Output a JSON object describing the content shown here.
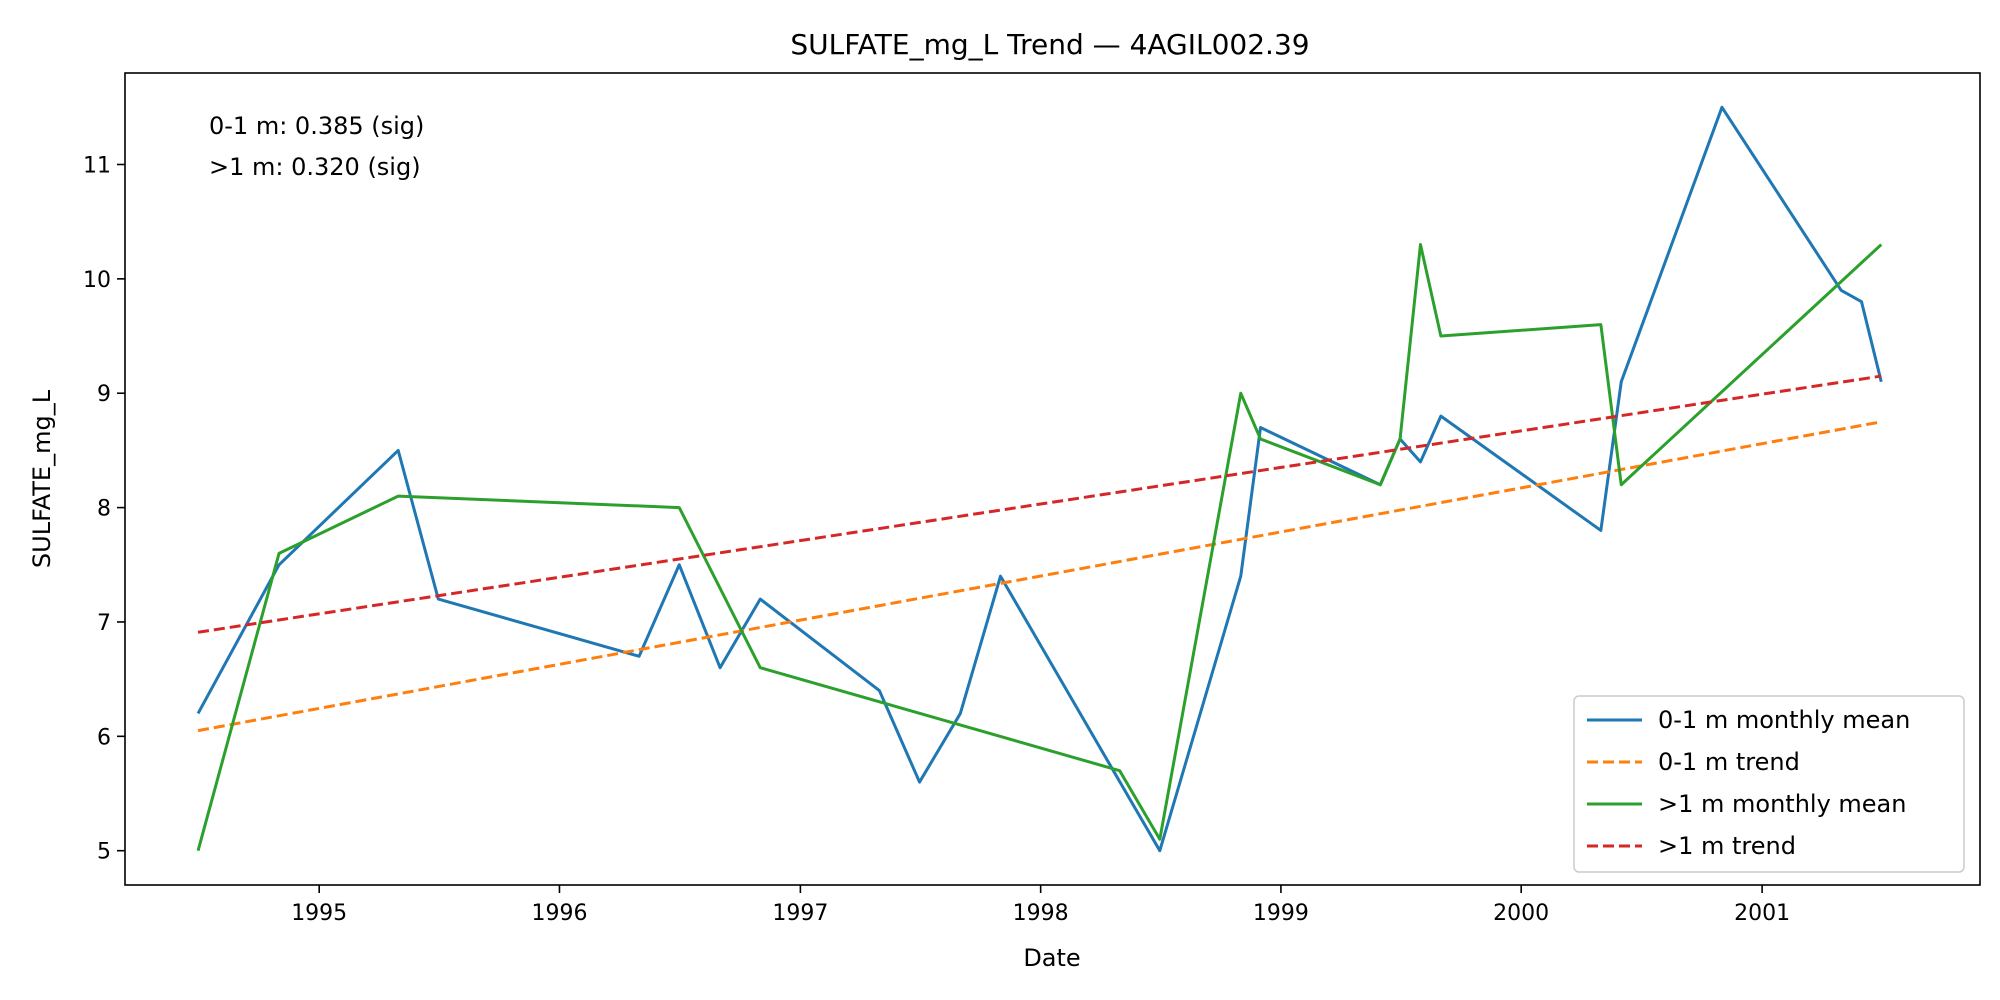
{
  "chart_data": {
    "type": "line",
    "title": "SULFATE_mg_L Trend — 4AGIL002.39",
    "xlabel": "Date",
    "ylabel": "SULFATE_mg_L",
    "xlim": [
      "1994-03-12",
      "2001-11-28"
    ],
    "ylim": [
      4.7,
      11.8
    ],
    "x_ticks": [
      "1995",
      "1996",
      "1997",
      "1998",
      "1999",
      "2000",
      "2001"
    ],
    "y_ticks": [
      5,
      6,
      7,
      8,
      9,
      10,
      11
    ],
    "grid": false,
    "legend_position": "lower-right",
    "annotations": [
      "0-1 m: 0.385 (sig)",
      ">1 m: 0.320 (sig)"
    ],
    "colors": {
      "series_0": "#1f77b4",
      "series_1": "#ff7f0e",
      "series_2": "#2ca02c",
      "series_3": "#d62728"
    },
    "series": [
      {
        "name": "0-1 m monthly mean",
        "style": "solid",
        "x": [
          "1994-07-01",
          "1994-11-01",
          "1995-05-01",
          "1995-07-01",
          "1996-05-01",
          "1996-07-01",
          "1996-09-01",
          "1996-11-01",
          "1997-05-01",
          "1997-07-01",
          "1997-09-01",
          "1997-11-01",
          "1998-07-01",
          "1998-11-01",
          "1998-12-01",
          "1999-06-01",
          "1999-07-01",
          "1999-08-01",
          "1999-09-01",
          "2000-05-01",
          "2000-06-01",
          "2000-11-01",
          "2001-05-01",
          "2001-06-01",
          "2001-07-01"
        ],
        "y": [
          6.2,
          7.5,
          8.5,
          7.2,
          6.7,
          7.5,
          6.6,
          7.2,
          6.4,
          5.6,
          6.2,
          7.4,
          5.0,
          7.4,
          8.7,
          8.2,
          8.6,
          8.4,
          8.8,
          7.8,
          9.1,
          11.5,
          9.9,
          9.8,
          9.1
        ]
      },
      {
        "name": "0-1 m trend",
        "style": "dashed",
        "x": [
          "1994-07-01",
          "2001-07-01"
        ],
        "y": [
          6.05,
          8.75
        ]
      },
      {
        "name": ">1 m monthly mean",
        "style": "solid",
        "x": [
          "1994-07-01",
          "1994-11-01",
          "1995-05-01",
          "1996-07-01",
          "1996-11-01",
          "1998-05-01",
          "1998-07-01",
          "1998-11-01",
          "1998-12-01",
          "1999-06-01",
          "1999-07-01",
          "1999-08-01",
          "1999-09-01",
          "2000-05-01",
          "2000-06-01",
          "2001-07-01"
        ],
        "y": [
          5.0,
          7.6,
          8.1,
          8.0,
          6.6,
          5.7,
          5.1,
          9.0,
          8.6,
          8.2,
          8.6,
          10.3,
          9.5,
          9.6,
          8.2,
          10.3
        ]
      },
      {
        "name": ">1 m trend",
        "style": "dashed",
        "x": [
          "1994-07-01",
          "2001-07-01"
        ],
        "y": [
          6.91,
          9.15
        ]
      }
    ]
  }
}
